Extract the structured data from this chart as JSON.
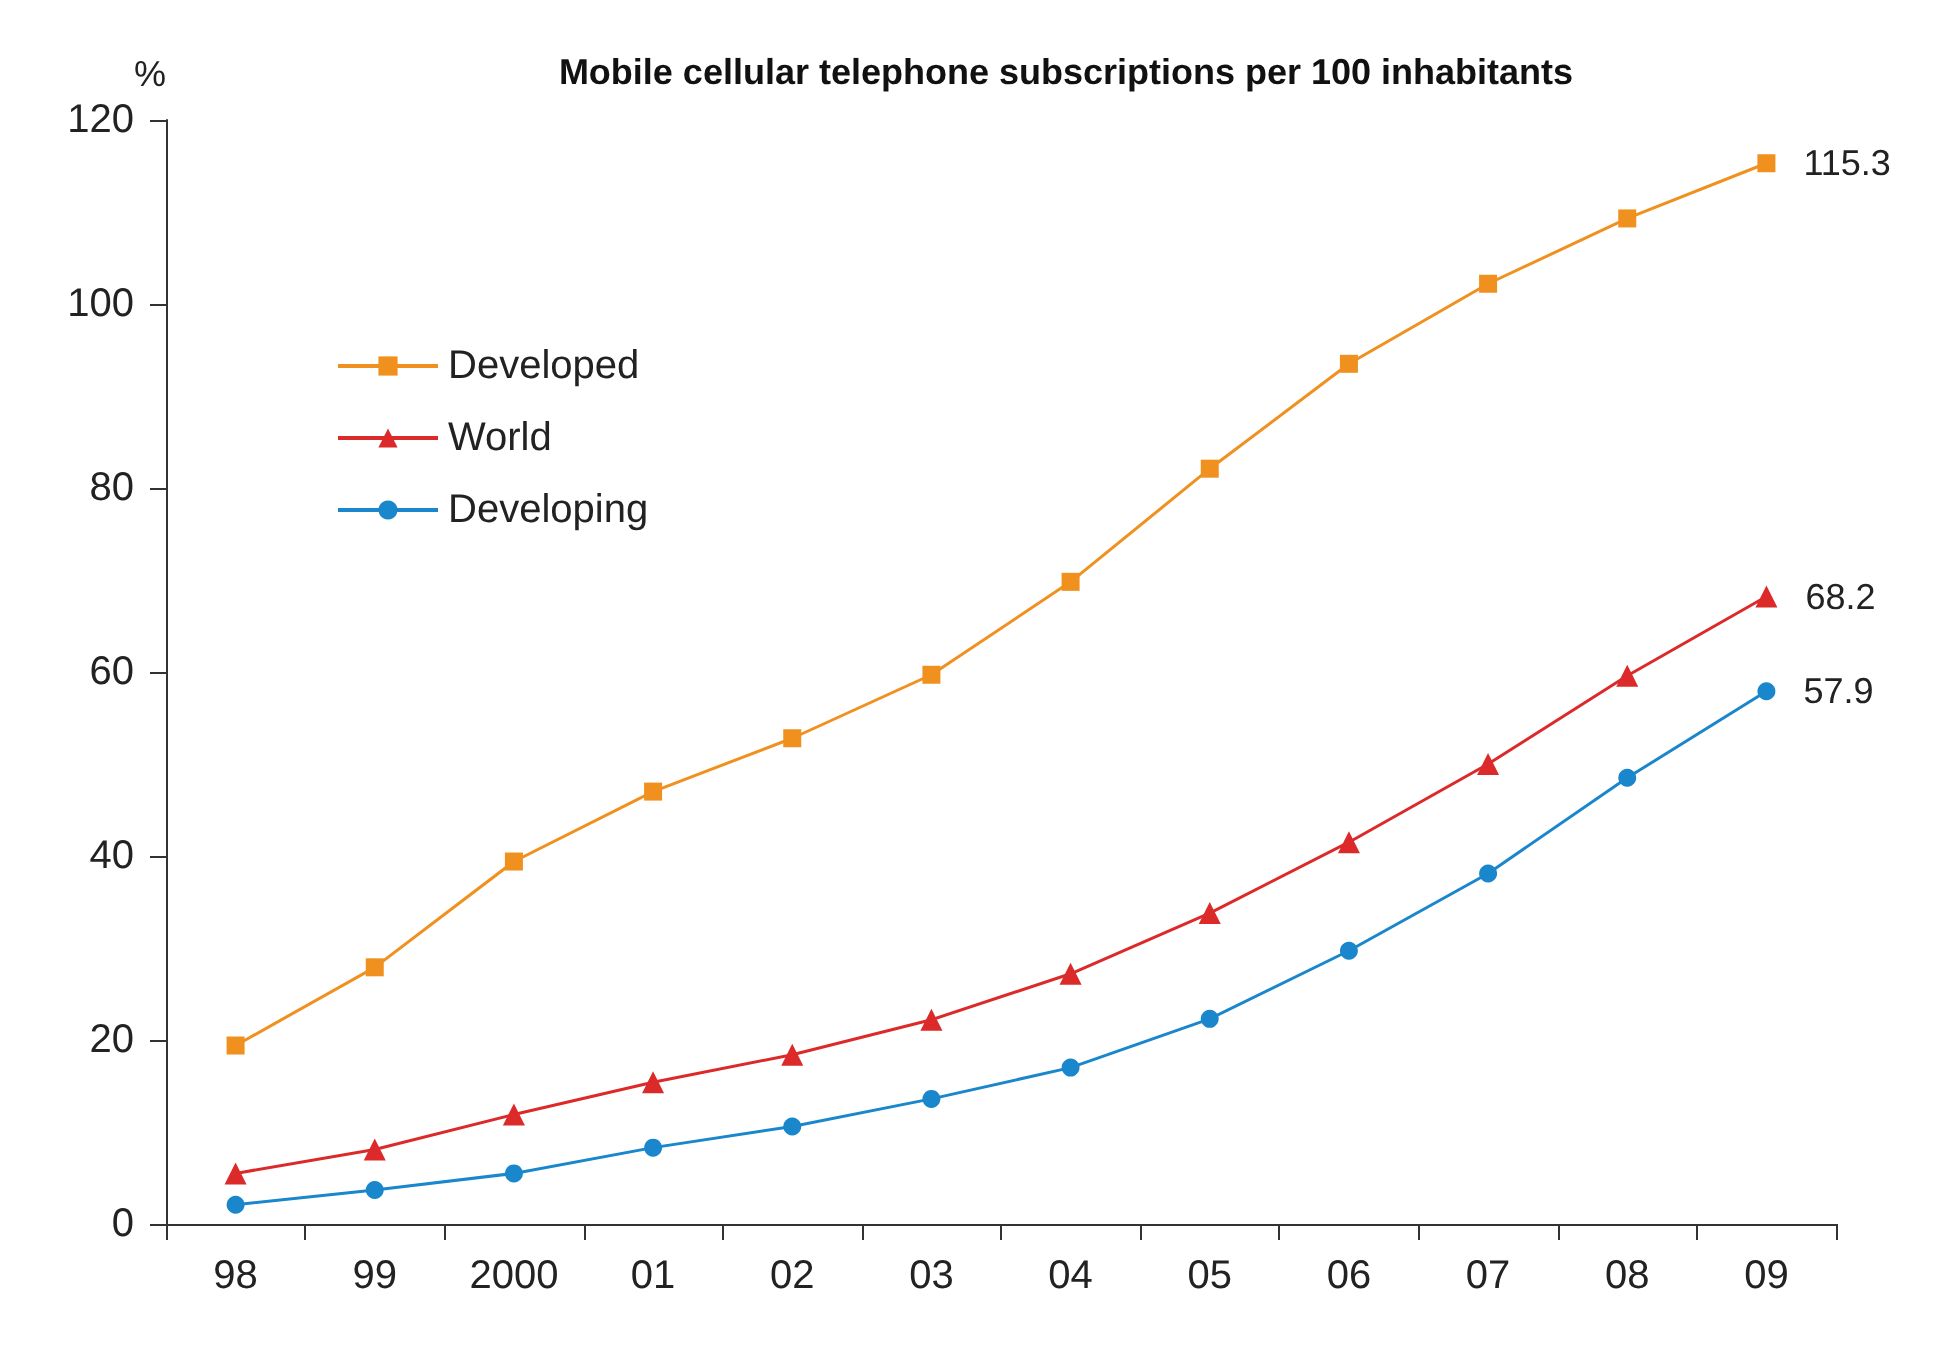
{
  "chart_data": {
    "type": "line",
    "title": "Mobile cellular telephone subscriptions per 100 inhabitants",
    "ylabel": "%",
    "categories": [
      "98",
      "99",
      "2000",
      "01",
      "02",
      "03",
      "04",
      "05",
      "06",
      "07",
      "08",
      "09"
    ],
    "series": [
      {
        "name": "Developed",
        "color": "#f0901e",
        "marker": "square",
        "values": [
          19.4,
          27.9,
          39.4,
          47.0,
          52.8,
          59.7,
          69.8,
          82.1,
          93.5,
          102.2,
          109.3,
          115.3
        ],
        "value_labels": [
          null,
          null,
          null,
          null,
          null,
          null,
          null,
          null,
          null,
          null,
          null,
          "115.3"
        ]
      },
      {
        "name": "World",
        "color": "#dc2a2a",
        "marker": "triangle",
        "values": [
          5.5,
          8.1,
          11.9,
          15.4,
          18.4,
          22.2,
          27.2,
          33.8,
          41.5,
          50.0,
          59.6,
          68.2
        ],
        "value_labels": [
          null,
          null,
          null,
          null,
          null,
          null,
          null,
          null,
          null,
          null,
          null,
          "68.2"
        ]
      },
      {
        "name": "Developing",
        "color": "#1a86cc",
        "marker": "circle",
        "values": [
          2.1,
          3.7,
          5.5,
          8.3,
          10.6,
          13.6,
          17.0,
          22.3,
          29.7,
          38.1,
          48.5,
          57.9
        ],
        "value_labels": [
          null,
          null,
          null,
          null,
          null,
          null,
          null,
          null,
          null,
          null,
          null,
          "57.9"
        ]
      }
    ],
    "ylim": [
      0,
      120
    ],
    "yticks": [
      0,
      20,
      40,
      60,
      80,
      100,
      120
    ],
    "grid": false,
    "legend": "top left",
    "line_style": "solid"
  }
}
